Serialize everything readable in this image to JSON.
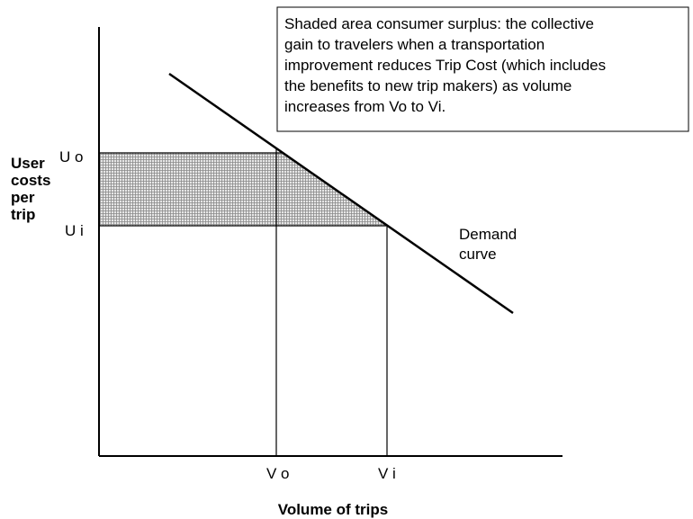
{
  "annotation": {
    "lines": [
      "Shaded area consumer surplus: the collective",
      "gain to travelers when a transportation",
      "improvement reduces Trip Cost (which includes",
      "the benefits to new trip makers) as volume",
      "increases from Vo to Vi."
    ]
  },
  "y_axis_label": {
    "lines": [
      "User",
      "costs",
      "per",
      "trip"
    ]
  },
  "y_labels": [
    "U o",
    "U i"
  ],
  "x_labels": [
    "V o",
    "V i"
  ],
  "curve_label": {
    "lines": [
      "Demand",
      "curve"
    ]
  },
  "x_axis_label": "Volume of trips"
}
